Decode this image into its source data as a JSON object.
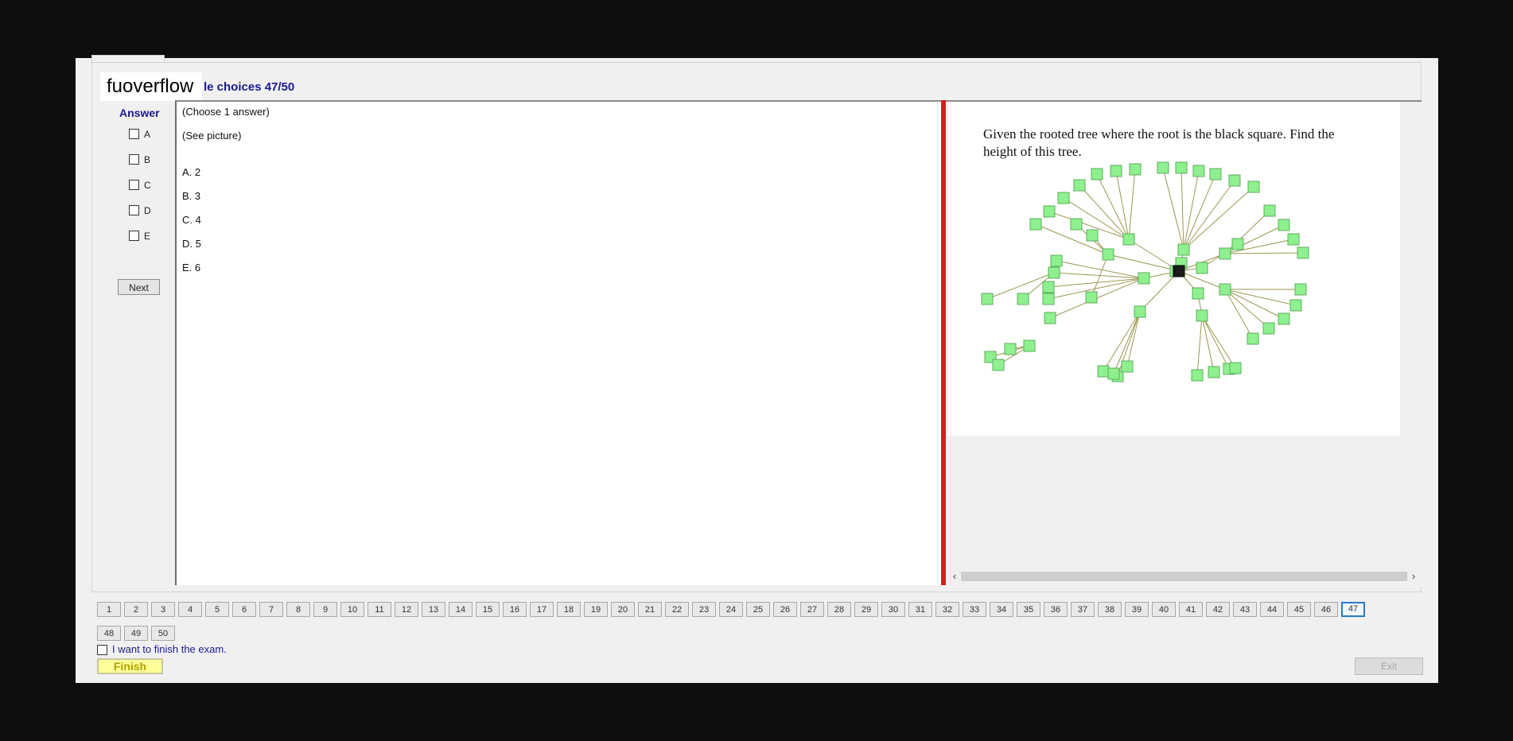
{
  "app": {
    "logo_text": "fuoverflow",
    "heading": "le choices 47/50"
  },
  "answer": {
    "label": "Answer",
    "options": [
      "A",
      "B",
      "C",
      "D",
      "E"
    ],
    "next_label": "Next"
  },
  "question": {
    "instruction": "(Choose 1 answer)",
    "prompt": "(See picture)",
    "choices": [
      "A.  2",
      "B.  3",
      "C.  4",
      "D.  5",
      "E.  6"
    ]
  },
  "image_panel": {
    "text": "Given the rooted tree where the root is the black square. Find the height of this tree.",
    "node_color": "#8ef08e",
    "root_color": "#1a1a1a",
    "edge_color": "#9c9650"
  },
  "navigation": {
    "current": 47,
    "pages": [
      "1",
      "2",
      "3",
      "4",
      "5",
      "6",
      "7",
      "8",
      "9",
      "10",
      "11",
      "12",
      "13",
      "14",
      "15",
      "16",
      "17",
      "18",
      "19",
      "20",
      "21",
      "22",
      "23",
      "24",
      "25",
      "26",
      "27",
      "28",
      "29",
      "30",
      "31",
      "32",
      "33",
      "34",
      "35",
      "36",
      "37",
      "38",
      "39",
      "40",
      "41",
      "42",
      "43",
      "44",
      "45",
      "46",
      "47",
      "48",
      "49",
      "50"
    ]
  },
  "footer": {
    "finish_check_label": "I want to finish the exam.",
    "finish_label": "Finish",
    "exit_label": "Exit"
  }
}
